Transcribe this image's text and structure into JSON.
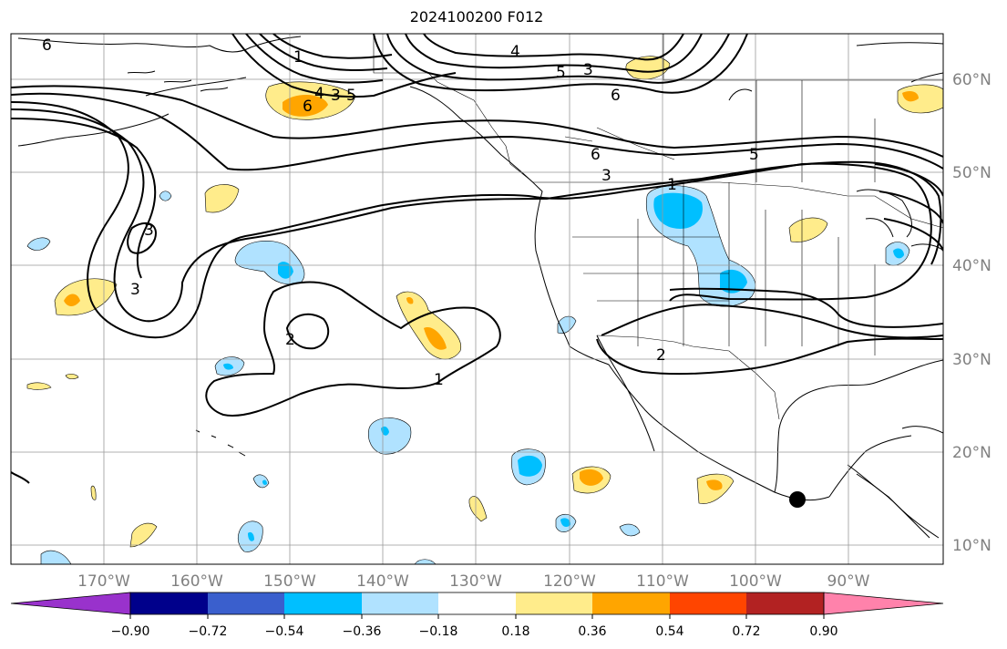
{
  "title": "2024100200 F012",
  "lon_labels": [
    "170°W",
    "160°W",
    "150°W",
    "140°W",
    "130°W",
    "120°W",
    "110°W",
    "100°W",
    "90°W"
  ],
  "lat_labels": [
    "60°N",
    "50°N",
    "40°N",
    "30°N",
    "20°N",
    "10°N"
  ],
  "contour_labels": [
    "6",
    "1",
    "4",
    "5",
    "3",
    "6",
    "6",
    "4",
    "3",
    "6",
    "5",
    "5",
    "3",
    "1",
    "3",
    "3",
    "2",
    "1",
    "2"
  ],
  "colorbar": {
    "tick_labels": [
      "−0.90",
      "−0.72",
      "−0.54",
      "−0.36",
      "−0.18",
      "0.18",
      "0.36",
      "0.54",
      "0.72",
      "0.90"
    ],
    "colors": [
      "#9932cc",
      "#00008b",
      "#3a5fcd",
      "#00bfff",
      "#b0e2ff",
      "#ffffff",
      "#ffec8b",
      "#ffa500",
      "#ff4500",
      "#b22222",
      "#ff82ab"
    ]
  },
  "colors": {
    "light_blue": "#b0e2ff",
    "deep_sky_blue": "#00bfff",
    "light_yellow": "#ffec8b",
    "orange": "#ffa500",
    "grid": "#999999",
    "contour": "#000000"
  },
  "marker": "filled-black-circle"
}
